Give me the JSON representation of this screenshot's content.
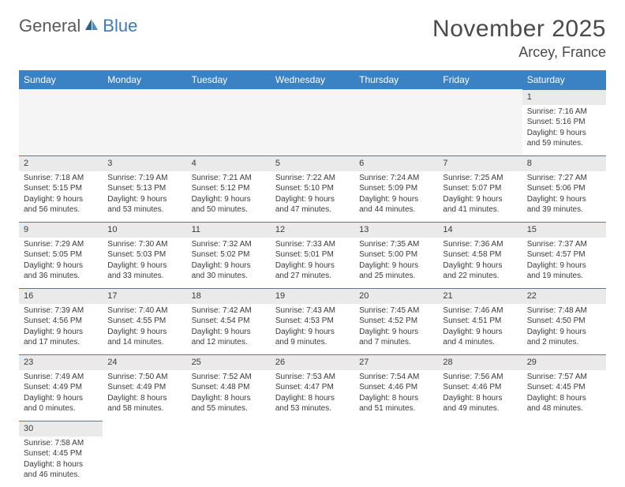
{
  "logo": {
    "text1": "General",
    "text2": "Blue"
  },
  "title": "November 2025",
  "location": "Arcey, France",
  "day_headers": [
    "Sunday",
    "Monday",
    "Tuesday",
    "Wednesday",
    "Thursday",
    "Friday",
    "Saturday"
  ],
  "colors": {
    "header_bg": "#3b82c4",
    "header_text": "#ffffff",
    "daynum_bg": "#eaeaea",
    "daynum_border": "#3b82c4",
    "text": "#3a3a3a",
    "title_text": "#4a4a4a",
    "logo_gray": "#5a5a5a",
    "logo_blue": "#3b7cb8"
  },
  "weeks": [
    [
      {
        "day": "",
        "sunrise": "",
        "sunset": "",
        "daylight1": "",
        "daylight2": ""
      },
      {
        "day": "",
        "sunrise": "",
        "sunset": "",
        "daylight1": "",
        "daylight2": ""
      },
      {
        "day": "",
        "sunrise": "",
        "sunset": "",
        "daylight1": "",
        "daylight2": ""
      },
      {
        "day": "",
        "sunrise": "",
        "sunset": "",
        "daylight1": "",
        "daylight2": ""
      },
      {
        "day": "",
        "sunrise": "",
        "sunset": "",
        "daylight1": "",
        "daylight2": ""
      },
      {
        "day": "",
        "sunrise": "",
        "sunset": "",
        "daylight1": "",
        "daylight2": ""
      },
      {
        "day": "1",
        "sunrise": "Sunrise: 7:16 AM",
        "sunset": "Sunset: 5:16 PM",
        "daylight1": "Daylight: 9 hours",
        "daylight2": "and 59 minutes."
      }
    ],
    [
      {
        "day": "2",
        "sunrise": "Sunrise: 7:18 AM",
        "sunset": "Sunset: 5:15 PM",
        "daylight1": "Daylight: 9 hours",
        "daylight2": "and 56 minutes."
      },
      {
        "day": "3",
        "sunrise": "Sunrise: 7:19 AM",
        "sunset": "Sunset: 5:13 PM",
        "daylight1": "Daylight: 9 hours",
        "daylight2": "and 53 minutes."
      },
      {
        "day": "4",
        "sunrise": "Sunrise: 7:21 AM",
        "sunset": "Sunset: 5:12 PM",
        "daylight1": "Daylight: 9 hours",
        "daylight2": "and 50 minutes."
      },
      {
        "day": "5",
        "sunrise": "Sunrise: 7:22 AM",
        "sunset": "Sunset: 5:10 PM",
        "daylight1": "Daylight: 9 hours",
        "daylight2": "and 47 minutes."
      },
      {
        "day": "6",
        "sunrise": "Sunrise: 7:24 AM",
        "sunset": "Sunset: 5:09 PM",
        "daylight1": "Daylight: 9 hours",
        "daylight2": "and 44 minutes."
      },
      {
        "day": "7",
        "sunrise": "Sunrise: 7:25 AM",
        "sunset": "Sunset: 5:07 PM",
        "daylight1": "Daylight: 9 hours",
        "daylight2": "and 41 minutes."
      },
      {
        "day": "8",
        "sunrise": "Sunrise: 7:27 AM",
        "sunset": "Sunset: 5:06 PM",
        "daylight1": "Daylight: 9 hours",
        "daylight2": "and 39 minutes."
      }
    ],
    [
      {
        "day": "9",
        "sunrise": "Sunrise: 7:29 AM",
        "sunset": "Sunset: 5:05 PM",
        "daylight1": "Daylight: 9 hours",
        "daylight2": "and 36 minutes."
      },
      {
        "day": "10",
        "sunrise": "Sunrise: 7:30 AM",
        "sunset": "Sunset: 5:03 PM",
        "daylight1": "Daylight: 9 hours",
        "daylight2": "and 33 minutes."
      },
      {
        "day": "11",
        "sunrise": "Sunrise: 7:32 AM",
        "sunset": "Sunset: 5:02 PM",
        "daylight1": "Daylight: 9 hours",
        "daylight2": "and 30 minutes."
      },
      {
        "day": "12",
        "sunrise": "Sunrise: 7:33 AM",
        "sunset": "Sunset: 5:01 PM",
        "daylight1": "Daylight: 9 hours",
        "daylight2": "and 27 minutes."
      },
      {
        "day": "13",
        "sunrise": "Sunrise: 7:35 AM",
        "sunset": "Sunset: 5:00 PM",
        "daylight1": "Daylight: 9 hours",
        "daylight2": "and 25 minutes."
      },
      {
        "day": "14",
        "sunrise": "Sunrise: 7:36 AM",
        "sunset": "Sunset: 4:58 PM",
        "daylight1": "Daylight: 9 hours",
        "daylight2": "and 22 minutes."
      },
      {
        "day": "15",
        "sunrise": "Sunrise: 7:37 AM",
        "sunset": "Sunset: 4:57 PM",
        "daylight1": "Daylight: 9 hours",
        "daylight2": "and 19 minutes."
      }
    ],
    [
      {
        "day": "16",
        "sunrise": "Sunrise: 7:39 AM",
        "sunset": "Sunset: 4:56 PM",
        "daylight1": "Daylight: 9 hours",
        "daylight2": "and 17 minutes."
      },
      {
        "day": "17",
        "sunrise": "Sunrise: 7:40 AM",
        "sunset": "Sunset: 4:55 PM",
        "daylight1": "Daylight: 9 hours",
        "daylight2": "and 14 minutes."
      },
      {
        "day": "18",
        "sunrise": "Sunrise: 7:42 AM",
        "sunset": "Sunset: 4:54 PM",
        "daylight1": "Daylight: 9 hours",
        "daylight2": "and 12 minutes."
      },
      {
        "day": "19",
        "sunrise": "Sunrise: 7:43 AM",
        "sunset": "Sunset: 4:53 PM",
        "daylight1": "Daylight: 9 hours",
        "daylight2": "and 9 minutes."
      },
      {
        "day": "20",
        "sunrise": "Sunrise: 7:45 AM",
        "sunset": "Sunset: 4:52 PM",
        "daylight1": "Daylight: 9 hours",
        "daylight2": "and 7 minutes."
      },
      {
        "day": "21",
        "sunrise": "Sunrise: 7:46 AM",
        "sunset": "Sunset: 4:51 PM",
        "daylight1": "Daylight: 9 hours",
        "daylight2": "and 4 minutes."
      },
      {
        "day": "22",
        "sunrise": "Sunrise: 7:48 AM",
        "sunset": "Sunset: 4:50 PM",
        "daylight1": "Daylight: 9 hours",
        "daylight2": "and 2 minutes."
      }
    ],
    [
      {
        "day": "23",
        "sunrise": "Sunrise: 7:49 AM",
        "sunset": "Sunset: 4:49 PM",
        "daylight1": "Daylight: 9 hours",
        "daylight2": "and 0 minutes."
      },
      {
        "day": "24",
        "sunrise": "Sunrise: 7:50 AM",
        "sunset": "Sunset: 4:49 PM",
        "daylight1": "Daylight: 8 hours",
        "daylight2": "and 58 minutes."
      },
      {
        "day": "25",
        "sunrise": "Sunrise: 7:52 AM",
        "sunset": "Sunset: 4:48 PM",
        "daylight1": "Daylight: 8 hours",
        "daylight2": "and 55 minutes."
      },
      {
        "day": "26",
        "sunrise": "Sunrise: 7:53 AM",
        "sunset": "Sunset: 4:47 PM",
        "daylight1": "Daylight: 8 hours",
        "daylight2": "and 53 minutes."
      },
      {
        "day": "27",
        "sunrise": "Sunrise: 7:54 AM",
        "sunset": "Sunset: 4:46 PM",
        "daylight1": "Daylight: 8 hours",
        "daylight2": "and 51 minutes."
      },
      {
        "day": "28",
        "sunrise": "Sunrise: 7:56 AM",
        "sunset": "Sunset: 4:46 PM",
        "daylight1": "Daylight: 8 hours",
        "daylight2": "and 49 minutes."
      },
      {
        "day": "29",
        "sunrise": "Sunrise: 7:57 AM",
        "sunset": "Sunset: 4:45 PM",
        "daylight1": "Daylight: 8 hours",
        "daylight2": "and 48 minutes."
      }
    ],
    [
      {
        "day": "30",
        "sunrise": "Sunrise: 7:58 AM",
        "sunset": "Sunset: 4:45 PM",
        "daylight1": "Daylight: 8 hours",
        "daylight2": "and 46 minutes."
      },
      {
        "day": "",
        "sunrise": "",
        "sunset": "",
        "daylight1": "",
        "daylight2": ""
      },
      {
        "day": "",
        "sunrise": "",
        "sunset": "",
        "daylight1": "",
        "daylight2": ""
      },
      {
        "day": "",
        "sunrise": "",
        "sunset": "",
        "daylight1": "",
        "daylight2": ""
      },
      {
        "day": "",
        "sunrise": "",
        "sunset": "",
        "daylight1": "",
        "daylight2": ""
      },
      {
        "day": "",
        "sunrise": "",
        "sunset": "",
        "daylight1": "",
        "daylight2": ""
      },
      {
        "day": "",
        "sunrise": "",
        "sunset": "",
        "daylight1": "",
        "daylight2": ""
      }
    ]
  ]
}
